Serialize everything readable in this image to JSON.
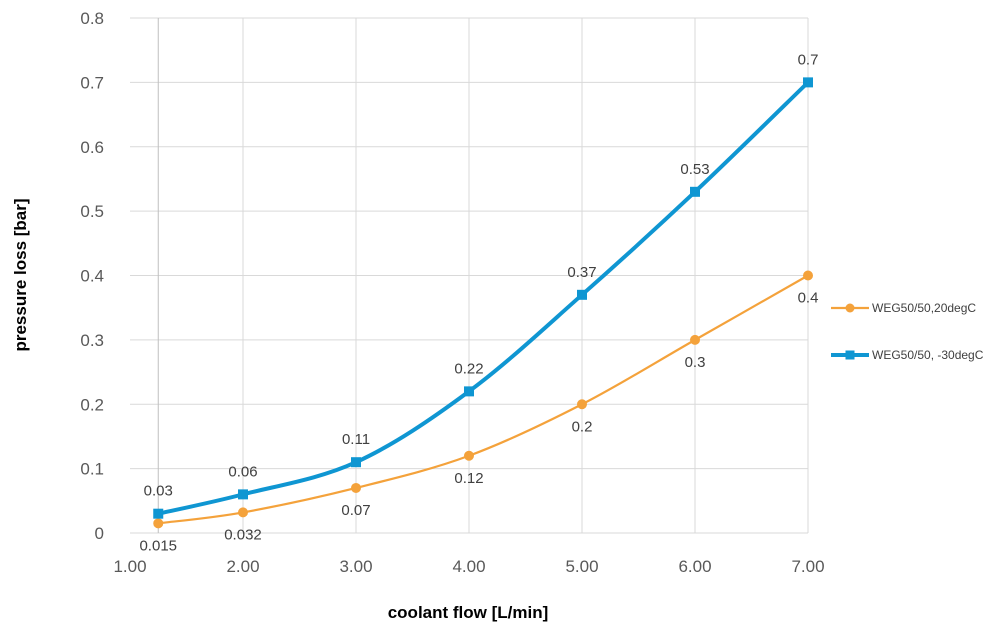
{
  "chart_data": {
    "type": "line",
    "xlabel": "coolant flow  [L/min]",
    "ylabel": "pressure loss  [bar]",
    "xlim": [
      1.0,
      7.0
    ],
    "ylim": [
      0,
      0.8
    ],
    "x_ticks": [
      "1.00",
      "2.00",
      "3.00",
      "4.00",
      "5.00",
      "6.00",
      "7.00"
    ],
    "y_ticks": [
      "0",
      "0.1",
      "0.2",
      "0.3",
      "0.4",
      "0.5",
      "0.6",
      "0.7",
      "0.8"
    ],
    "grid": true,
    "legend_position": "right",
    "series": [
      {
        "name": "WEG50/50,20degC",
        "color": "#F4A23B",
        "marker": "circle",
        "x": [
          1.25,
          2,
          3,
          4,
          5,
          6,
          7
        ],
        "values": [
          0.015,
          0.032,
          0.07,
          0.12,
          0.2,
          0.3,
          0.4
        ],
        "labels": [
          "0.015",
          "0.032",
          "0.07",
          "0.12",
          "0.2",
          "0.3",
          "0.4"
        ],
        "label_position": "below"
      },
      {
        "name": "WEG50/50, -30degC",
        "color": "#0F96D2",
        "marker": "square",
        "x": [
          1.25,
          2,
          3,
          4,
          5,
          6,
          7
        ],
        "values": [
          0.03,
          0.06,
          0.11,
          0.22,
          0.37,
          0.53,
          0.7
        ],
        "labels": [
          "0.03",
          "0.06",
          "0.11",
          "0.22",
          "0.37",
          "0.53",
          "0.7"
        ],
        "label_position": "above"
      }
    ]
  }
}
